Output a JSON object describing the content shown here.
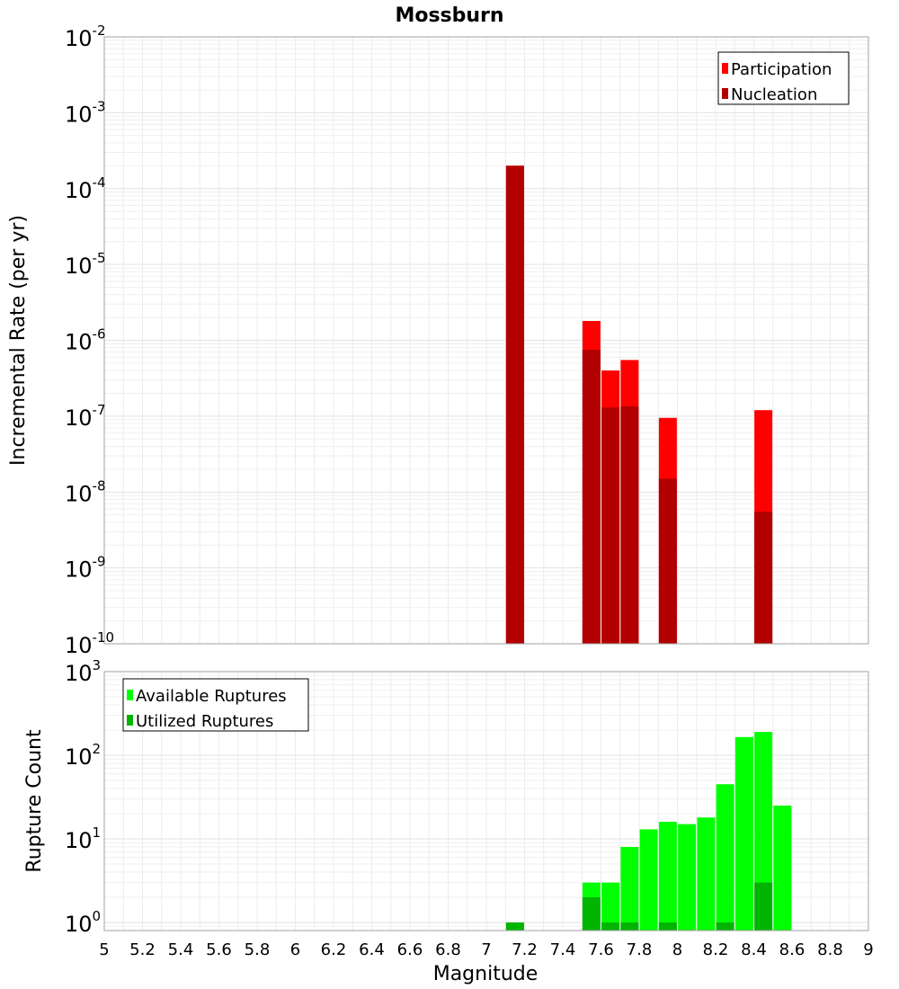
{
  "chart_data": [
    {
      "type": "bar",
      "title": "Mossburn",
      "xlabel": "",
      "ylabel": "Incremental Rate (per yr)",
      "yscale": "log",
      "ylim": [
        1e-10,
        0.01
      ],
      "y_tick_exponents": [
        -2,
        -3,
        -4,
        -5,
        -6,
        -7,
        -8,
        -9,
        -10
      ],
      "grid": true,
      "legend_position": "top-right",
      "series": [
        {
          "name": "Participation",
          "color": "#ff0000",
          "x": [
            7.15,
            7.55,
            7.65,
            7.75,
            7.95,
            8.45
          ],
          "values": [
            0.0002,
            1.8e-06,
            4e-07,
            5.5e-07,
            9.5e-08,
            1.2e-07
          ]
        },
        {
          "name": "Nucleation",
          "color": "#b20000",
          "x": [
            7.15,
            7.55,
            7.65,
            7.75,
            7.95,
            8.45
          ],
          "values": [
            0.0002,
            7.5e-07,
            1.3e-07,
            1.35e-07,
            1.5e-08,
            5.5e-09
          ]
        }
      ]
    },
    {
      "type": "bar",
      "title": "",
      "xlabel": "Magnitude",
      "ylabel": "Rupture Count",
      "yscale": "log",
      "ylim": [
        0.8,
        1000
      ],
      "y_tick_exponents": [
        3,
        2,
        1,
        0
      ],
      "xlim": [
        5,
        9
      ],
      "x_ticks": [
        "5",
        "5.2",
        "5.4",
        "5.6",
        "5.8",
        "6",
        "6.2",
        "6.4",
        "6.6",
        "6.8",
        "7",
        "7.2",
        "7.4",
        "7.6",
        "7.8",
        "8",
        "8.2",
        "8.4",
        "8.6",
        "8.8",
        "9"
      ],
      "grid": true,
      "legend_position": "top-left",
      "series": [
        {
          "name": "Available Ruptures",
          "color": "#00ff00",
          "x": [
            7.15,
            7.55,
            7.65,
            7.75,
            7.85,
            7.95,
            8.05,
            8.15,
            8.25,
            8.35,
            8.45,
            8.55
          ],
          "values": [
            1,
            3,
            3,
            8,
            13,
            16,
            15,
            18,
            45,
            165,
            190,
            25
          ]
        },
        {
          "name": "Utilized Ruptures",
          "color": "#00b400",
          "x": [
            7.15,
            7.55,
            7.65,
            7.75,
            7.95,
            8.25,
            8.45
          ],
          "values": [
            1,
            2,
            1,
            1,
            1,
            1,
            3
          ]
        }
      ]
    }
  ]
}
